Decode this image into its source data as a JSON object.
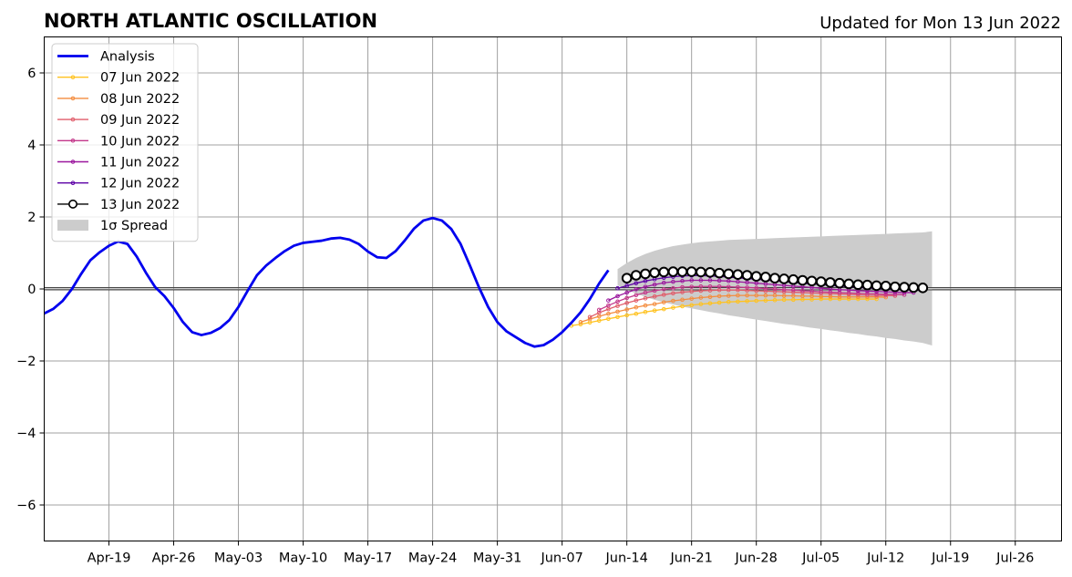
{
  "title": "NORTH ATLANTIC OSCILLATION",
  "subtitle": "Updated for Mon 13 Jun 2022",
  "chart_data": {
    "type": "line",
    "title": "NORTH ATLANTIC OSCILLATION",
    "xlim": [
      "2022-04-12",
      "2022-07-31"
    ],
    "ylim": [
      -7,
      7
    ],
    "yticks": [
      -6,
      -4,
      -2,
      0,
      2,
      4,
      6
    ],
    "ytick_labels": [
      "−6",
      "−4",
      "−2",
      "0",
      "2",
      "4",
      "6"
    ],
    "xticks": [
      "2022-04-19",
      "2022-04-26",
      "2022-05-03",
      "2022-05-10",
      "2022-05-17",
      "2022-05-24",
      "2022-05-31",
      "2022-06-07",
      "2022-06-14",
      "2022-06-21",
      "2022-06-28",
      "2022-07-05",
      "2022-07-12",
      "2022-07-19",
      "2022-07-26"
    ],
    "xtick_labels": [
      "Apr-19",
      "Apr-26",
      "May-03",
      "May-10",
      "May-17",
      "May-24",
      "May-31",
      "Jun-07",
      "Jun-14",
      "Jun-21",
      "Jun-28",
      "Jul-05",
      "Jul-12",
      "Jul-19",
      "Jul-26"
    ],
    "grid": true,
    "legend_position": "top-left",
    "analysis": {
      "name": "Analysis",
      "color": "#0000ee",
      "start_date": "2022-04-12",
      "values": [
        -0.68,
        -0.55,
        -0.33,
        -0.0,
        0.42,
        0.8,
        1.02,
        1.2,
        1.32,
        1.25,
        0.9,
        0.45,
        0.05,
        -0.2,
        -0.53,
        -0.92,
        -1.2,
        -1.28,
        -1.22,
        -1.09,
        -0.87,
        -0.5,
        -0.05,
        0.38,
        0.65,
        0.86,
        1.05,
        1.2,
        1.28,
        1.31,
        1.34,
        1.4,
        1.42,
        1.37,
        1.25,
        1.04,
        0.88,
        0.86,
        1.05,
        1.35,
        1.68,
        1.9,
        1.97,
        1.9,
        1.67,
        1.26,
        0.67,
        0.05,
        -0.5,
        -0.92,
        -1.18,
        -1.34,
        -1.5,
        -1.6,
        -1.56,
        -1.41,
        -1.2,
        -0.94,
        -0.65,
        -0.28,
        0.15,
        0.52
      ]
    },
    "forecasts": [
      {
        "name": "07 Jun 2022",
        "color": "#ffc21f",
        "start_date": "2022-06-08",
        "values": [
          -1.02,
          -0.98,
          -0.93,
          -0.88,
          -0.83,
          -0.78,
          -0.73,
          -0.69,
          -0.64,
          -0.6,
          -0.56,
          -0.52,
          -0.48,
          -0.45,
          -0.42,
          -0.4,
          -0.38,
          -0.36,
          -0.35,
          -0.34,
          -0.33,
          -0.32,
          -0.31,
          -0.3,
          -0.3,
          -0.29,
          -0.29,
          -0.28,
          -0.28,
          -0.28,
          -0.28,
          -0.28,
          -0.28,
          -0.28
        ]
      },
      {
        "name": "08 Jun 2022",
        "color": "#f48c3e",
        "start_date": "2022-06-09",
        "values": [
          -0.92,
          -0.84,
          -0.76,
          -0.69,
          -0.63,
          -0.57,
          -0.51,
          -0.46,
          -0.42,
          -0.37,
          -0.33,
          -0.3,
          -0.27,
          -0.24,
          -0.22,
          -0.2,
          -0.19,
          -0.18,
          -0.18,
          -0.18,
          -0.18,
          -0.18,
          -0.19,
          -0.19,
          -0.2,
          -0.2,
          -0.21,
          -0.21,
          -0.22,
          -0.22,
          -0.22,
          -0.22,
          -0.22,
          -0.23
        ]
      },
      {
        "name": "09 Jun 2022",
        "color": "#e05c6a",
        "start_date": "2022-06-10",
        "values": [
          -0.78,
          -0.66,
          -0.56,
          -0.47,
          -0.39,
          -0.32,
          -0.26,
          -0.21,
          -0.16,
          -0.12,
          -0.09,
          -0.07,
          -0.05,
          -0.04,
          -0.03,
          -0.03,
          -0.03,
          -0.04,
          -0.05,
          -0.06,
          -0.07,
          -0.08,
          -0.09,
          -0.1,
          -0.11,
          -0.12,
          -0.13,
          -0.14,
          -0.15,
          -0.16,
          -0.17,
          -0.18,
          -0.18,
          -0.19
        ]
      },
      {
        "name": "10 Jun 2022",
        "color": "#c3378a",
        "start_date": "2022-06-11",
        "values": [
          -0.58,
          -0.46,
          -0.35,
          -0.25,
          -0.17,
          -0.1,
          -0.05,
          -0.01,
          0.02,
          0.05,
          0.06,
          0.07,
          0.07,
          0.07,
          0.06,
          0.05,
          0.04,
          0.03,
          0.01,
          0.0,
          -0.02,
          -0.03,
          -0.05,
          -0.06,
          -0.08,
          -0.09,
          -0.1,
          -0.11,
          -0.12,
          -0.13,
          -0.14,
          -0.15,
          -0.15,
          -0.16
        ]
      },
      {
        "name": "11 Jun 2022",
        "color": "#9b179e",
        "start_date": "2022-06-12",
        "values": [
          -0.32,
          -0.2,
          -0.1,
          -0.01,
          0.06,
          0.12,
          0.17,
          0.2,
          0.22,
          0.24,
          0.24,
          0.24,
          0.23,
          0.22,
          0.2,
          0.18,
          0.16,
          0.14,
          0.12,
          0.1,
          0.08,
          0.06,
          0.04,
          0.02,
          0.0,
          -0.02,
          -0.03,
          -0.05,
          -0.06,
          -0.07,
          -0.08,
          -0.09,
          -0.1,
          -0.1
        ]
      },
      {
        "name": "12 Jun 2022",
        "color": "#5c01a6",
        "start_date": "2022-06-13",
        "values": [
          0.02,
          0.09,
          0.16,
          0.22,
          0.27,
          0.31,
          0.34,
          0.36,
          0.37,
          0.37,
          0.36,
          0.35,
          0.33,
          0.31,
          0.29,
          0.27,
          0.25,
          0.23,
          0.2,
          0.18,
          0.16,
          0.14,
          0.12,
          0.1,
          0.08,
          0.06,
          0.04,
          0.03,
          0.01,
          0.0,
          -0.01,
          -0.02,
          -0.03,
          -0.04
        ]
      },
      {
        "name": "13 Jun 2022",
        "color": "#000000",
        "start_date": "2022-06-14",
        "values": [
          0.3,
          0.38,
          0.42,
          0.45,
          0.47,
          0.48,
          0.48,
          0.48,
          0.47,
          0.46,
          0.44,
          0.42,
          0.4,
          0.38,
          0.35,
          0.33,
          0.3,
          0.28,
          0.26,
          0.24,
          0.22,
          0.2,
          0.18,
          0.16,
          0.14,
          0.12,
          0.11,
          0.09,
          0.08,
          0.06,
          0.05,
          0.04,
          0.03
        ]
      }
    ],
    "spread": {
      "name": "1σ Spread",
      "color": "#cccccc",
      "start_date": "2022-06-13",
      "upper": [
        0.55,
        0.72,
        0.86,
        0.97,
        1.06,
        1.13,
        1.19,
        1.23,
        1.27,
        1.3,
        1.32,
        1.34,
        1.36,
        1.37,
        1.38,
        1.39,
        1.4,
        1.41,
        1.42,
        1.43,
        1.44,
        1.45,
        1.46,
        1.47,
        1.48,
        1.49,
        1.5,
        1.51,
        1.52,
        1.53,
        1.54,
        1.55,
        1.56,
        1.57,
        1.6
      ],
      "lower": [
        0.1,
        -0.02,
        -0.13,
        -0.22,
        -0.3,
        -0.37,
        -0.43,
        -0.49,
        -0.54,
        -0.59,
        -0.64,
        -0.68,
        -0.73,
        -0.77,
        -0.81,
        -0.85,
        -0.89,
        -0.93,
        -0.97,
        -1.0,
        -1.04,
        -1.08,
        -1.11,
        -1.15,
        -1.18,
        -1.22,
        -1.25,
        -1.29,
        -1.32,
        -1.36,
        -1.39,
        -1.43,
        -1.46,
        -1.5,
        -1.57
      ]
    }
  }
}
